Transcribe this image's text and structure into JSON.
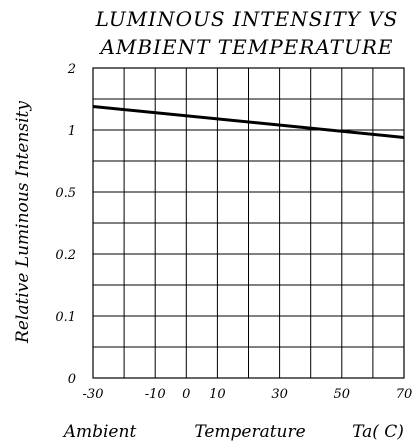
{
  "chart_data": {
    "type": "line",
    "title_lines": [
      "LUMINOUS  INTENSITY  VS",
      "AMBIENT  TEMPERATURE"
    ],
    "xlabel_left": "Ambient",
    "xlabel_mid": "Temperature",
    "xlabel_right": "Ta( C)",
    "ylabel": "Relative Luminous Intensity",
    "x_ticks": [
      "-30",
      "-10",
      "0",
      "10",
      "30",
      "50",
      "70"
    ],
    "x_tick_values": [
      -30,
      -10,
      0,
      10,
      30,
      50,
      70
    ],
    "y_ticks": [
      "0",
      "0.1",
      "0.2",
      "0.5",
      "1",
      "2"
    ],
    "xlim": [
      -30,
      70
    ],
    "ylim_rows": [
      0,
      10
    ],
    "grid": true,
    "series": [
      {
        "x": [
          -30,
          70
        ],
        "y": [
          1.3,
          0.92
        ]
      }
    ]
  }
}
